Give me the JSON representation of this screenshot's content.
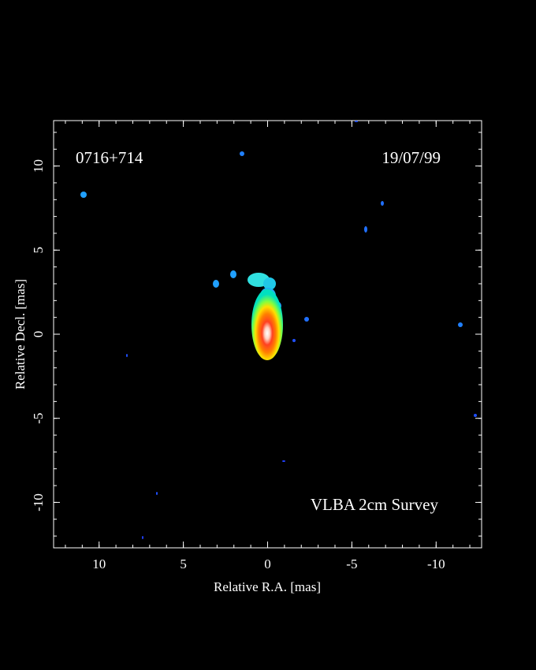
{
  "chart_data": {
    "type": "image",
    "annotations": [
      "0716+714",
      "19/07/99",
      "VLBA 2cm Survey"
    ],
    "xlabel": "Relative R.A. [mas]",
    "ylabel": "Relative Decl. [mas]",
    "xlim": [
      12.7,
      -12.7
    ],
    "xticks": [
      10,
      5,
      0,
      -5,
      -10
    ],
    "ylim": [
      -12.7,
      12.7
    ],
    "yticks": [
      -10,
      -5,
      0,
      5,
      10
    ]
  }
}
